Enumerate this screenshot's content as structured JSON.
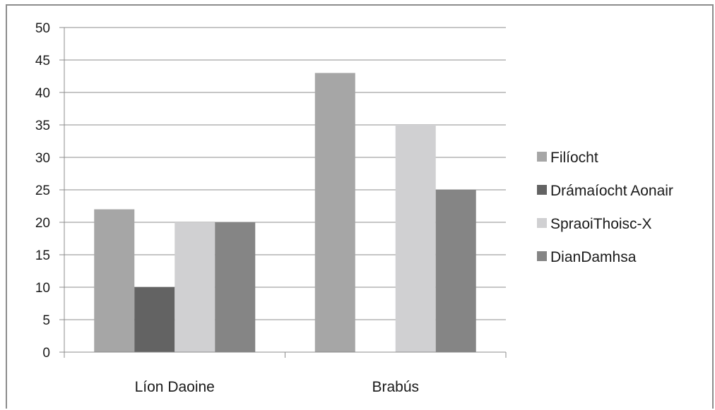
{
  "chart_data": {
    "type": "bar",
    "categories": [
      "Líon Daoine",
      "Brabús"
    ],
    "series": [
      {
        "name": "Filíocht",
        "values": [
          22,
          43
        ],
        "color": "#a6a6a6"
      },
      {
        "name": "Drámaíocht Aonair",
        "values": [
          10,
          0
        ],
        "color": "#636363"
      },
      {
        "name": "SpraoiThoisc-X",
        "values": [
          20,
          35
        ],
        "color": "#d0d0d2"
      },
      {
        "name": "DianDamhsa",
        "values": [
          20,
          25
        ],
        "color": "#858585"
      }
    ],
    "ylim": [
      0,
      50
    ],
    "yticks": [
      0,
      5,
      10,
      15,
      20,
      25,
      30,
      35,
      40,
      45,
      50
    ],
    "grid": true,
    "legend_position": "right"
  }
}
